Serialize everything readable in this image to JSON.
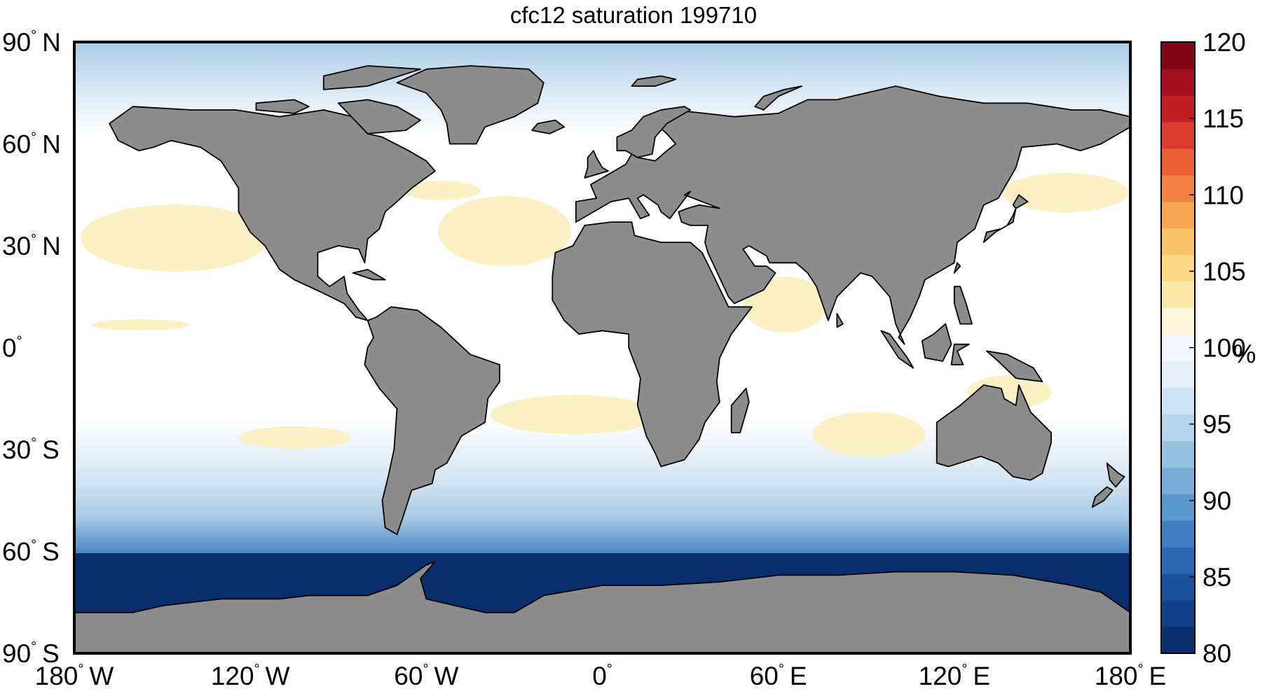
{
  "title": "cfc12 saturation 199710",
  "map": {
    "projection": "equirectangular",
    "extent": {
      "lon": [
        -180,
        180
      ],
      "lat": [
        -90,
        90
      ]
    },
    "land_color": "#8c8c8c",
    "coastline_color": "#000000",
    "lat_ticks": [
      {
        "value": 90,
        "num": "90",
        "hemi": "N"
      },
      {
        "value": 60,
        "num": "60",
        "hemi": "N"
      },
      {
        "value": 30,
        "num": "30",
        "hemi": "N"
      },
      {
        "value": 0,
        "num": "0",
        "hemi": ""
      },
      {
        "value": -30,
        "num": "30",
        "hemi": "S"
      },
      {
        "value": -60,
        "num": "60",
        "hemi": "S"
      },
      {
        "value": -90,
        "num": "90",
        "hemi": "S"
      }
    ],
    "lon_ticks": [
      {
        "value": -180,
        "num": "180",
        "hemi": "W"
      },
      {
        "value": -120,
        "num": "120",
        "hemi": "W"
      },
      {
        "value": -60,
        "num": "60",
        "hemi": "W"
      },
      {
        "value": 0,
        "num": "0",
        "hemi": ""
      },
      {
        "value": 60,
        "num": "60",
        "hemi": "E"
      },
      {
        "value": 120,
        "num": "120",
        "hemi": "E"
      },
      {
        "value": 180,
        "num": "180",
        "hemi": "E"
      }
    ],
    "degree_symbol": "°"
  },
  "colorbar": {
    "range": [
      80,
      120
    ],
    "ticks": [
      120,
      115,
      110,
      105,
      100,
      95,
      90,
      85,
      80
    ],
    "unit": "%",
    "colors_bottom_to_top": [
      "#0a2d6b",
      "#0f3f86",
      "#1a529c",
      "#2a67b0",
      "#3f7fc0",
      "#5a97cc",
      "#78acd7",
      "#97c2e2",
      "#b5d4eb",
      "#cfe3f2",
      "#e3eef8",
      "#f4f8fc",
      "#fff7d9",
      "#fde9a7",
      "#fcd987",
      "#fbc36a",
      "#f8a554",
      "#f38344",
      "#ea5f36",
      "#dc3a2c",
      "#c41e25",
      "#a30f1f",
      "#7f0519"
    ]
  },
  "field_colors": {
    "deep_blue": "#0a2d6b",
    "mid_blue": "#2f6fb4",
    "light_blue": "#a9cbe6",
    "pale_blue": "#d7e7f4",
    "ocean_white": "#ffffff",
    "pale_yellow": "#fcefbf"
  }
}
